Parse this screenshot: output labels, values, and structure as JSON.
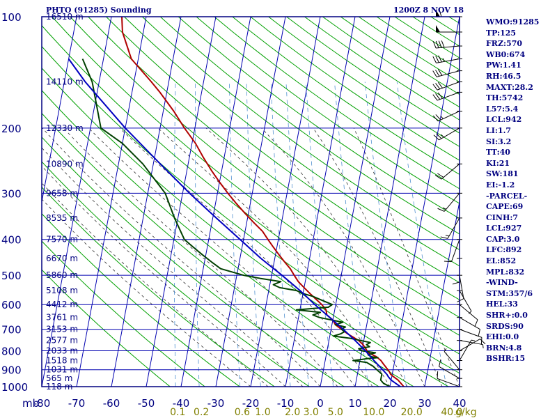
{
  "header": {
    "title": "PHTO (91285) Sounding",
    "datetime": "1200Z  8 NOV 18"
  },
  "indices": [
    "WMO:91285",
    "TP:125",
    "FRZ:570",
    "WB0:674",
    "PW:1.41",
    "RH:46.5",
    "MAXT:28.2",
    "TH:5742",
    "L57:5.4",
    "LCL:942",
    "LI:1.7",
    "SI:3.2",
    "TT:40",
    "KI:21",
    "SW:181",
    "EI:-1.2",
    "-PARCEL-",
    "CAPE:69",
    "CINH:7",
    "LCL:927",
    "CAP:3.0",
    "LFC:892",
    "EL:852",
    "MPL:832",
    "-WIND-",
    "STM:357/6",
    "HEL:33",
    "SHR+:0.0",
    "SRDS:90",
    "EHI:0.0",
    "BRN:4.8",
    "BSHR:15"
  ],
  "colors": {
    "frame": "#000080",
    "grid": "#0000b0",
    "dry_adiabat": "#00a000",
    "moist_adiabat": "#303030",
    "mixing_ratio": "#5090d0",
    "temperature": "#b00000",
    "dewpoint": "#004000",
    "parcel": "#0000c0",
    "height_label": "#000080",
    "mixing_label": "#808000",
    "wind": "#000000"
  },
  "chart_data": {
    "type": "line",
    "subtype": "skew-T log-P diagram",
    "title": "PHTO (91285) Sounding",
    "xlabel": "mb",
    "pressure_range": [
      1000,
      100
    ],
    "temperature_range": [
      -80,
      40
    ],
    "pressure_levels": [
      100,
      200,
      300,
      400,
      500,
      600,
      700,
      800,
      900,
      1000
    ],
    "pressure_labels": [
      "100",
      "200",
      "300",
      "400",
      "500",
      "600",
      "700",
      "800",
      "900",
      "1000"
    ],
    "temperature_ticks": [
      -80,
      -70,
      -60,
      -50,
      -40,
      -30,
      -20,
      -10,
      0,
      10,
      20,
      30,
      40
    ],
    "temperature_tick_labels": [
      "-80",
      "-70",
      "-60",
      "-50",
      "-40",
      "-30",
      "-20",
      "-10",
      "0",
      "10",
      "20",
      "30",
      "40"
    ],
    "mixing_ratio_labels": [
      {
        "value": 0.1,
        "label": "0.1"
      },
      {
        "value": 0.2,
        "label": "0.2"
      },
      {
        "value": 0.6,
        "label": "0.6"
      },
      {
        "value": 1.0,
        "label": "1.0"
      },
      {
        "value": 2.0,
        "label": "2.0"
      },
      {
        "value": 3.0,
        "label": "3.0"
      },
      {
        "value": 5.0,
        "label": "5.0"
      },
      {
        "value": 10.0,
        "label": "10.0"
      },
      {
        "value": 20.0,
        "label": "20.0"
      },
      {
        "value": 40.0,
        "label": "40.0"
      }
    ],
    "mixing_ratio_unit": "g/kg",
    "height_labels": [
      {
        "p": 100,
        "label": "16510 m"
      },
      {
        "p": 150,
        "label": "14110 m"
      },
      {
        "p": 200,
        "label": "12330 m"
      },
      {
        "p": 250,
        "label": "10890 m"
      },
      {
        "p": 300,
        "label": "9658 m"
      },
      {
        "p": 350,
        "label": "8535 m"
      },
      {
        "p": 400,
        "label": "7570 m"
      },
      {
        "p": 450,
        "label": "6670 m"
      },
      {
        "p": 500,
        "label": "5860 m"
      },
      {
        "p": 550,
        "label": "5108 m"
      },
      {
        "p": 600,
        "label": "4412 m"
      },
      {
        "p": 650,
        "label": "3761 m"
      },
      {
        "p": 700,
        "label": "3153 m"
      },
      {
        "p": 750,
        "label": "2577 m"
      },
      {
        "p": 800,
        "label": "2033 m"
      },
      {
        "p": 850,
        "label": "1518 m"
      },
      {
        "p": 900,
        "label": "1031 m"
      },
      {
        "p": 950,
        "label": "565 m"
      },
      {
        "p": 1000,
        "label": "118 m"
      }
    ],
    "series": [
      {
        "name": "Temperature",
        "color_key": "temperature",
        "points": [
          [
            1000,
            24
          ],
          [
            980,
            23
          ],
          [
            960,
            22
          ],
          [
            940,
            20.5
          ],
          [
            925,
            19.5
          ],
          [
            910,
            19
          ],
          [
            890,
            18
          ],
          [
            870,
            17
          ],
          [
            850,
            16
          ],
          [
            830,
            14.5
          ],
          [
            810,
            12
          ],
          [
            790,
            11
          ],
          [
            770,
            10
          ],
          [
            750,
            8.5
          ],
          [
            720,
            5
          ],
          [
            700,
            3
          ],
          [
            680,
            1
          ],
          [
            660,
            0
          ],
          [
            640,
            -2
          ],
          [
            620,
            -2.5
          ],
          [
            600,
            -4
          ],
          [
            580,
            -6
          ],
          [
            560,
            -8
          ],
          [
            540,
            -10
          ],
          [
            520,
            -12
          ],
          [
            500,
            -13.5
          ],
          [
            480,
            -15
          ],
          [
            460,
            -17
          ],
          [
            440,
            -19
          ],
          [
            420,
            -21
          ],
          [
            400,
            -23
          ],
          [
            380,
            -25
          ],
          [
            360,
            -28
          ],
          [
            340,
            -31
          ],
          [
            320,
            -34
          ],
          [
            300,
            -37
          ],
          [
            280,
            -40
          ],
          [
            260,
            -43
          ],
          [
            240,
            -46
          ],
          [
            220,
            -49
          ],
          [
            200,
            -53
          ],
          [
            180,
            -57
          ],
          [
            160,
            -62
          ],
          [
            150,
            -65
          ],
          [
            130,
            -72
          ],
          [
            110,
            -76
          ],
          [
            100,
            -77
          ]
        ]
      },
      {
        "name": "Dewpoint",
        "color_key": "dewpoint",
        "points": [
          [
            1000,
            20
          ],
          [
            980,
            18
          ],
          [
            960,
            17
          ],
          [
            940,
            17
          ],
          [
            925,
            17
          ],
          [
            910,
            16
          ],
          [
            880,
            14
          ],
          [
            870,
            13
          ],
          [
            860,
            12
          ],
          [
            855,
            10
          ],
          [
            850,
            8
          ],
          [
            845,
            10
          ],
          [
            840,
            12
          ],
          [
            835,
            15
          ],
          [
            830,
            13
          ],
          [
            820,
            12
          ],
          [
            810,
            14
          ],
          [
            800,
            10
          ],
          [
            790,
            9
          ],
          [
            780,
            12
          ],
          [
            770,
            11
          ],
          [
            760,
            12
          ],
          [
            740,
            6
          ],
          [
            730,
            1
          ],
          [
            720,
            3
          ],
          [
            710,
            4
          ],
          [
            700,
            3
          ],
          [
            690,
            4
          ],
          [
            680,
            1
          ],
          [
            670,
            3
          ],
          [
            650,
            -4
          ],
          [
            640,
            -6
          ],
          [
            630,
            -4
          ],
          [
            620,
            -11
          ],
          [
            610,
            -2
          ],
          [
            600,
            -1
          ],
          [
            590,
            -3
          ],
          [
            580,
            -5
          ],
          [
            570,
            -7
          ],
          [
            560,
            -10
          ],
          [
            550,
            -12
          ],
          [
            540,
            -17
          ],
          [
            530,
            -19
          ],
          [
            520,
            -17
          ],
          [
            510,
            -23
          ],
          [
            500,
            -28
          ],
          [
            480,
            -35
          ],
          [
            460,
            -38
          ],
          [
            440,
            -41
          ],
          [
            420,
            -44
          ],
          [
            400,
            -47
          ],
          [
            350,
            -51
          ],
          [
            300,
            -55
          ],
          [
            250,
            -63
          ],
          [
            220,
            -70
          ],
          [
            200,
            -77
          ],
          [
            150,
            -82
          ],
          [
            130,
            -86
          ]
        ]
      },
      {
        "name": "Parcel",
        "color_key": "parcel",
        "points": [
          [
            1000,
            23
          ],
          [
            980,
            21.5
          ],
          [
            960,
            20
          ],
          [
            940,
            19
          ],
          [
            927,
            18.5
          ],
          [
            900,
            17
          ],
          [
            850,
            14
          ],
          [
            800,
            11
          ],
          [
            750,
            7.5
          ],
          [
            700,
            3.5
          ],
          [
            650,
            -1
          ],
          [
            600,
            -6
          ],
          [
            550,
            -11
          ],
          [
            500,
            -17
          ],
          [
            450,
            -24
          ],
          [
            400,
            -31
          ],
          [
            350,
            -39
          ],
          [
            300,
            -48
          ],
          [
            250,
            -58
          ],
          [
            200,
            -70
          ],
          [
            150,
            -84
          ],
          [
            130,
            -90
          ]
        ]
      }
    ],
    "wind_barbs": [
      {
        "p": 1000,
        "direction": 290,
        "speed_kt": 10
      },
      {
        "p": 950,
        "direction": 300,
        "speed_kt": 10
      },
      {
        "p": 900,
        "direction": 320,
        "speed_kt": 5
      },
      {
        "p": 850,
        "direction": 30,
        "speed_kt": 5
      },
      {
        "p": 800,
        "direction": 60,
        "speed_kt": 10
      },
      {
        "p": 750,
        "direction": 100,
        "speed_kt": 5
      },
      {
        "p": 700,
        "direction": 110,
        "speed_kt": 10
      },
      {
        "p": 650,
        "direction": 120,
        "speed_kt": 10
      },
      {
        "p": 600,
        "direction": 130,
        "speed_kt": 10
      },
      {
        "p": 550,
        "direction": 150,
        "speed_kt": 5
      },
      {
        "p": 500,
        "direction": 170,
        "speed_kt": 10
      },
      {
        "p": 450,
        "direction": 180,
        "speed_kt": 10
      },
      {
        "p": 400,
        "direction": 200,
        "speed_kt": 10
      },
      {
        "p": 350,
        "direction": 210,
        "speed_kt": 15
      },
      {
        "p": 300,
        "direction": 220,
        "speed_kt": 15
      },
      {
        "p": 250,
        "direction": 230,
        "speed_kt": 20
      },
      {
        "p": 200,
        "direction": 240,
        "speed_kt": 25
      },
      {
        "p": 180,
        "direction": 245,
        "speed_kt": 25
      },
      {
        "p": 160,
        "direction": 250,
        "speed_kt": 30
      },
      {
        "p": 150,
        "direction": 250,
        "speed_kt": 30
      },
      {
        "p": 140,
        "direction": 255,
        "speed_kt": 30
      },
      {
        "p": 130,
        "direction": 260,
        "speed_kt": 35
      },
      {
        "p": 120,
        "direction": 265,
        "speed_kt": 40
      },
      {
        "p": 110,
        "direction": 270,
        "speed_kt": 50
      },
      {
        "p": 100,
        "direction": 270,
        "speed_kt": 60
      }
    ]
  }
}
